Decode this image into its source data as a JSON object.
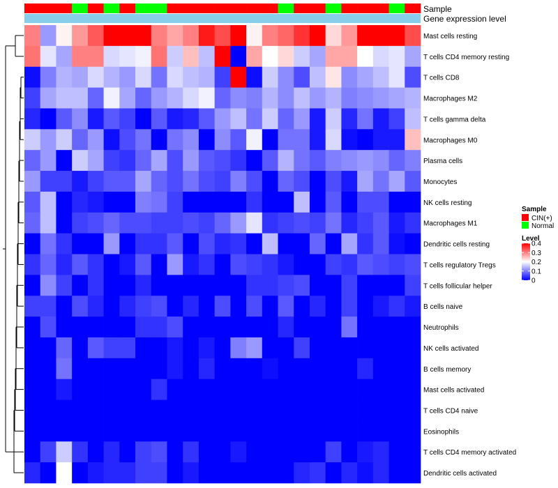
{
  "chart_data": {
    "type": "heatmap",
    "title": "",
    "annotation_labels": {
      "sample": "Sample",
      "gene_expression": "Gene expression level"
    },
    "colors": {
      "cin_pos": "#ff0000",
      "normal": "#00ff00",
      "gene_expression_bar": "#87ceeb",
      "scale_low": "#0000ff",
      "scale_mid": "#ffffff",
      "scale_high": "#ff0000"
    },
    "sample_groups": [
      "CIN(+)",
      "CIN(+)",
      "CIN(+)",
      "Normal",
      "CIN(+)",
      "Normal",
      "CIN(+)",
      "Normal",
      "Normal",
      "CIN(+)",
      "CIN(+)",
      "CIN(+)",
      "CIN(+)",
      "CIN(+)",
      "CIN(+)",
      "CIN(+)",
      "Normal",
      "CIN(+)",
      "CIN(+)",
      "Normal",
      "CIN(+)",
      "CIN(+)",
      "CIN(+)",
      "Normal",
      "CIN(+)"
    ],
    "legend": {
      "sample_title": "Sample",
      "sample_entries": [
        "CIN(+)",
        "Normal"
      ],
      "level_title": "Level",
      "level_ticks": [
        "0.4",
        "0.3",
        "0.2",
        "0.1",
        "0"
      ],
      "range": [
        0,
        0.4
      ]
    },
    "rows": [
      "Mast cells resting",
      "T cells CD4 memory resting",
      "T cells CD8",
      "Macrophages M2",
      "T cells gamma delta",
      "Macrophages M0",
      "Plasma cells",
      "Monocytes",
      "NK cells resting",
      "Macrophages M1",
      "Dendritic cells resting",
      "T cells regulatory  Tregs",
      "T cells follicular helper",
      "B cells naive",
      "Neutrophils",
      "NK cells activated",
      "B cells memory",
      "Mast cells activated",
      "T cells CD4 naive",
      "Eosinophils",
      "T cells CD4 memory activated",
      "Dendritic cells activated"
    ],
    "values": [
      [
        0.3,
        0.12,
        0.21,
        0.28,
        0.33,
        0.4,
        0.4,
        0.4,
        0.3,
        0.27,
        0.3,
        0.38,
        0.34,
        0.4,
        0.21,
        0.3,
        0.32,
        0.36,
        0.4,
        0.23,
        0.28,
        0.4,
        0.4,
        0.4,
        0.34
      ],
      [
        0.31,
        0.18,
        0.13,
        0.3,
        0.3,
        0.17,
        0.18,
        0.19,
        0.31,
        0.16,
        0.25,
        0.15,
        0.4,
        0.0,
        0.27,
        0.2,
        0.23,
        0.16,
        0.13,
        0.27,
        0.27,
        0.2,
        0.17,
        0.18,
        0.13
      ],
      [
        0.01,
        0.1,
        0.14,
        0.13,
        0.17,
        0.14,
        0.12,
        0.17,
        0.09,
        0.17,
        0.15,
        0.14,
        0.05,
        0.4,
        0.01,
        0.16,
        0.11,
        0.06,
        0.15,
        0.22,
        0.11,
        0.13,
        0.15,
        0.18,
        0.06
      ],
      [
        0.05,
        0.13,
        0.15,
        0.15,
        0.08,
        0.19,
        0.13,
        0.08,
        0.12,
        0.14,
        0.17,
        0.19,
        0.08,
        0.11,
        0.1,
        0.14,
        0.11,
        0.15,
        0.12,
        0.14,
        0.1,
        0.11,
        0.12,
        0.13,
        0.14
      ],
      [
        0.03,
        0.0,
        0.07,
        0.11,
        0.02,
        0.07,
        0.05,
        0.0,
        0.07,
        0.02,
        0.03,
        0.07,
        0.12,
        0.15,
        0.09,
        0.16,
        0.08,
        0.12,
        0.02,
        0.16,
        0.03,
        0.09,
        0.02,
        0.05,
        0.15
      ],
      [
        0.16,
        0.12,
        0.16,
        0.08,
        0.12,
        0.01,
        0.06,
        0.09,
        0.0,
        0.09,
        0.11,
        0.0,
        0.11,
        0.07,
        0.19,
        0.0,
        0.09,
        0.09,
        0.02,
        0.17,
        0.01,
        0.0,
        0.02,
        0.02,
        0.25
      ],
      [
        0.08,
        0.12,
        0.0,
        0.16,
        0.13,
        0.05,
        0.04,
        0.08,
        0.13,
        0.06,
        0.12,
        0.07,
        0.06,
        0.04,
        0.0,
        0.07,
        0.14,
        0.09,
        0.07,
        0.1,
        0.11,
        0.12,
        0.11,
        0.08,
        0.1
      ],
      [
        0.12,
        0.05,
        0.05,
        0.02,
        0.05,
        0.07,
        0.07,
        0.13,
        0.08,
        0.06,
        0.09,
        0.06,
        0.05,
        0.1,
        0.06,
        0.0,
        0.08,
        0.06,
        0.0,
        0.06,
        0.02,
        0.13,
        0.09,
        0.13,
        0.07
      ],
      [
        0.07,
        0.15,
        0.0,
        0.03,
        0.02,
        0.0,
        0.0,
        0.1,
        0.09,
        0.05,
        0.0,
        0.0,
        0.0,
        0.0,
        0.04,
        0.0,
        0.0,
        0.15,
        0.0,
        0.07,
        0.0,
        0.06,
        0.06,
        0.0,
        0.0
      ],
      [
        0.08,
        0.15,
        0.0,
        0.05,
        0.06,
        0.08,
        0.06,
        0.06,
        0.05,
        0.05,
        0.06,
        0.05,
        0.08,
        0.12,
        0.18,
        0.04,
        0.05,
        0.06,
        0.05,
        0.09,
        0.03,
        0.05,
        0.07,
        0.02,
        0.04
      ],
      [
        0.0,
        0.09,
        0.04,
        0.0,
        0.0,
        0.12,
        0.0,
        0.04,
        0.04,
        0.07,
        0.0,
        0.06,
        0.03,
        0.04,
        0.0,
        0.15,
        0.0,
        0.0,
        0.08,
        0.0,
        0.13,
        0.04,
        0.07,
        0.01,
        0.0
      ],
      [
        0.04,
        0.08,
        0.03,
        0.07,
        0.04,
        0.0,
        0.02,
        0.07,
        0.0,
        0.12,
        0.02,
        0.04,
        0.0,
        0.06,
        0.05,
        0.04,
        0.02,
        0.0,
        0.0,
        0.05,
        0.04,
        0.07,
        0.06,
        0.05,
        0.06
      ],
      [
        0.0,
        0.11,
        0.05,
        0.0,
        0.04,
        0.0,
        0.0,
        0.03,
        0.0,
        0.0,
        0.0,
        0.0,
        0.0,
        0.0,
        0.04,
        0.04,
        0.05,
        0.06,
        0.0,
        0.0,
        0.05,
        0.0,
        0.0,
        0.0,
        0.05
      ],
      [
        0.05,
        0.05,
        0.0,
        0.06,
        0.03,
        0.0,
        0.03,
        0.05,
        0.06,
        0.0,
        0.03,
        0.0,
        0.06,
        0.0,
        0.06,
        0.0,
        0.07,
        0.0,
        0.03,
        0.0,
        0.05,
        0.0,
        0.02,
        0.04,
        0.02
      ],
      [
        0.0,
        0.06,
        0.0,
        0.0,
        0.0,
        0.0,
        0.0,
        0.04,
        0.04,
        0.06,
        0.0,
        0.0,
        0.0,
        0.0,
        0.0,
        0.0,
        0.03,
        0.0,
        0.0,
        0.0,
        0.09,
        0.0,
        0.0,
        0.0,
        0.0
      ],
      [
        0.0,
        0.0,
        0.08,
        0.0,
        0.07,
        0.05,
        0.05,
        0.0,
        0.0,
        0.02,
        0.0,
        0.02,
        0.0,
        0.1,
        0.12,
        0.0,
        0.0,
        0.05,
        0.0,
        0.0,
        0.0,
        0.0,
        0.0,
        0.0,
        0.0
      ],
      [
        0.0,
        0.0,
        0.09,
        0.0,
        0.0,
        0.0,
        0.0,
        0.0,
        0.0,
        0.02,
        0.0,
        0.03,
        0.0,
        0.0,
        0.0,
        0.01,
        0.0,
        0.0,
        0.0,
        0.0,
        0.0,
        0.03,
        0.0,
        0.0,
        0.0
      ],
      [
        0.0,
        0.0,
        0.02,
        0.0,
        0.0,
        0.0,
        0.0,
        0.0,
        0.04,
        0.0,
        0.0,
        0.0,
        0.0,
        0.0,
        0.0,
        0.0,
        0.0,
        0.0,
        0.0,
        0.0,
        0.0,
        0.0,
        0.0,
        0.0,
        0.0
      ],
      [
        0.0,
        0.0,
        0.0,
        0.0,
        0.0,
        0.0,
        0.0,
        0.0,
        0.0,
        0.0,
        0.0,
        0.0,
        0.0,
        0.0,
        0.0,
        0.0,
        0.0,
        0.0,
        0.0,
        0.0,
        0.0,
        0.0,
        0.0,
        0.0,
        0.0
      ],
      [
        0.0,
        0.0,
        0.0,
        0.0,
        0.0,
        0.0,
        0.0,
        0.0,
        0.0,
        0.0,
        0.0,
        0.0,
        0.0,
        0.0,
        0.0,
        0.0,
        0.0,
        0.0,
        0.0,
        0.0,
        0.0,
        0.0,
        0.0,
        0.0,
        0.0
      ],
      [
        0.0,
        0.05,
        0.16,
        0.04,
        0.0,
        0.03,
        0.0,
        0.05,
        0.06,
        0.0,
        0.04,
        0.0,
        0.0,
        0.02,
        0.0,
        0.0,
        0.0,
        0.0,
        0.0,
        0.05,
        0.0,
        0.02,
        0.03,
        0.0,
        0.0
      ],
      [
        0.03,
        0.0,
        0.2,
        0.0,
        0.02,
        0.03,
        0.03,
        0.05,
        0.05,
        0.0,
        0.02,
        0.0,
        0.0,
        0.0,
        0.0,
        0.0,
        0.0,
        0.03,
        0.04,
        0.0,
        0.03,
        0.01,
        0.03,
        0.0,
        0.0
      ]
    ]
  }
}
